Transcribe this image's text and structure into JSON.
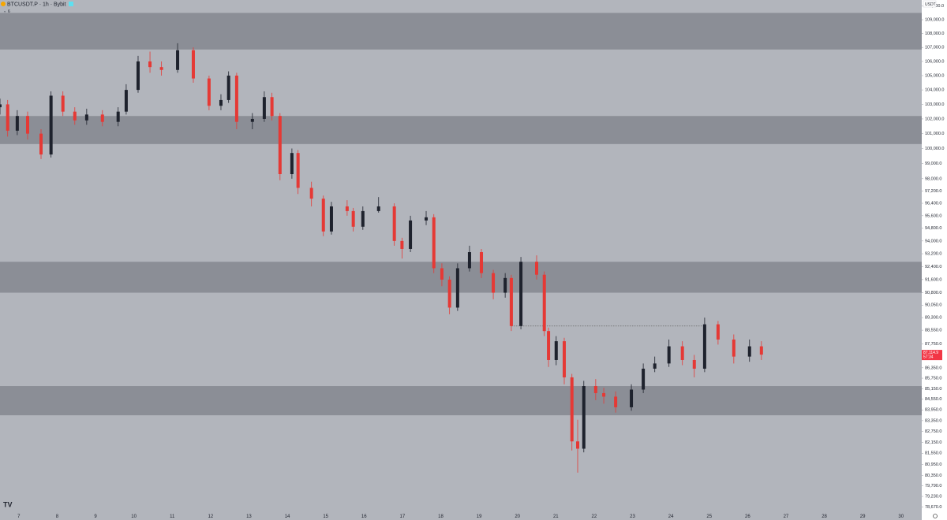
{
  "chart_data": {
    "type": "candlestick",
    "title": "BTCUSDT.P · 1h · Bybit",
    "indicator_count": "6",
    "currency": "USDT",
    "log_scale": true,
    "up_color": "#1e222d",
    "down_color": "#e53935",
    "zone_color": "#8b8e96",
    "xlim": [
      6.51,
      30.54
    ],
    "xticks": [
      7,
      8,
      9,
      10,
      11,
      12,
      13,
      14,
      15,
      16,
      17,
      18,
      19,
      20,
      21,
      22,
      23,
      24,
      25,
      26,
      27,
      28,
      29,
      30
    ],
    "ylim": [
      78400,
      110450
    ],
    "yticks": [
      {
        "value": 110000,
        "label": "110,000.0"
      },
      {
        "value": 109000,
        "label": "109,000.0"
      },
      {
        "value": 108000,
        "label": "108,000.0"
      },
      {
        "value": 107000,
        "label": "107,000.0"
      },
      {
        "value": 106000,
        "label": "106,000.0"
      },
      {
        "value": 105000,
        "label": "105,000.0"
      },
      {
        "value": 104000,
        "label": "104,000.0"
      },
      {
        "value": 103000,
        "label": "103,000.0"
      },
      {
        "value": 102000,
        "label": "102,000.0"
      },
      {
        "value": 101000,
        "label": "101,000.0"
      },
      {
        "value": 100000,
        "label": "100,000.0"
      },
      {
        "value": 99000,
        "label": "99,000.0"
      },
      {
        "value": 98000,
        "label": "98,000.0"
      },
      {
        "value": 97200,
        "label": "97,200.0"
      },
      {
        "value": 96400,
        "label": "96,400.0"
      },
      {
        "value": 95600,
        "label": "95,600.0"
      },
      {
        "value": 94800,
        "label": "94,800.0"
      },
      {
        "value": 94000,
        "label": "94,000.0"
      },
      {
        "value": 93200,
        "label": "93,200.0"
      },
      {
        "value": 92400,
        "label": "92,400.0"
      },
      {
        "value": 91600,
        "label": "91,600.0"
      },
      {
        "value": 90800,
        "label": "90,800.0"
      },
      {
        "value": 90050,
        "label": "90,050.0"
      },
      {
        "value": 89300,
        "label": "89,300.0"
      },
      {
        "value": 88550,
        "label": "88,550.0"
      },
      {
        "value": 87750,
        "label": "87,750.0"
      },
      {
        "value": 86950,
        "label": "86,950.0"
      },
      {
        "value": 86350,
        "label": "86,350.0"
      },
      {
        "value": 85750,
        "label": "85,750.0"
      },
      {
        "value": 85150,
        "label": "85,150.0"
      },
      {
        "value": 84550,
        "label": "84,550.0"
      },
      {
        "value": 83950,
        "label": "83,950.0"
      },
      {
        "value": 83350,
        "label": "83,350.0"
      },
      {
        "value": 82750,
        "label": "82,750.0"
      },
      {
        "value": 82150,
        "label": "82,150.0"
      },
      {
        "value": 81550,
        "label": "81,550.0"
      },
      {
        "value": 80950,
        "label": "80,950.0"
      },
      {
        "value": 80350,
        "label": "80,350.0"
      },
      {
        "value": 79790,
        "label": "79,790.0"
      },
      {
        "value": 79230,
        "label": "79,230.0"
      },
      {
        "value": 78670,
        "label": "78,670.0"
      }
    ],
    "zones": [
      {
        "from": 106850,
        "to": 109500
      },
      {
        "from": 100300,
        "to": 102200
      },
      {
        "from": 90800,
        "to": 92700
      },
      {
        "from": 83650,
        "to": 85300
      }
    ],
    "dotted_line": {
      "from_x": 19.84,
      "to_x": 24.88,
      "price": 88800
    },
    "last_price": {
      "value": 87114.9,
      "label": "87,114.9"
    },
    "countdown": "57:34",
    "x": [
      6.51,
      6.71,
      6.96,
      7.23,
      7.58,
      7.84,
      8.15,
      8.46,
      8.77,
      9.18,
      9.59,
      9.8,
      10.11,
      10.42,
      10.72,
      11.14,
      11.55,
      11.96,
      12.27,
      12.47,
      12.68,
      13.09,
      13.4,
      13.6,
      13.81,
      14.12,
      14.28,
      14.63,
      14.94,
      15.15,
      15.56,
      15.72,
      15.97,
      16.38,
      16.79,
      16.99,
      17.21,
      17.62,
      17.82,
      18.03,
      18.23,
      18.44,
      18.75,
      19.06,
      19.37,
      19.68,
      19.84,
      20.09,
      20.5,
      20.7,
      20.81,
      21.01,
      21.22,
      21.42,
      21.57,
      21.73,
      22.04,
      22.25,
      22.56,
      22.97,
      23.28,
      23.58,
      23.95,
      24.3,
      24.61,
      24.88,
      25.23,
      25.64,
      26.05,
      26.36
    ],
    "open": [
      102800,
      103000,
      101200,
      102200,
      101000,
      99600,
      103600,
      102500,
      101900,
      102300,
      101800,
      102500,
      104000,
      106000,
      105600,
      105400,
      106800,
      104800,
      102900,
      103300,
      105000,
      101800,
      102000,
      103500,
      102200,
      98300,
      99700,
      97400,
      96700,
      94600,
      96200,
      95900,
      94900,
      95900,
      96200,
      94000,
      93500,
      95300,
      95500,
      92300,
      91600,
      89900,
      92300,
      93300,
      92000,
      90800,
      91700,
      88800,
      92700,
      91900,
      88500,
      86800,
      87900,
      85800,
      82200,
      81800,
      85300,
      84900,
      84700,
      84100,
      85100,
      86300,
      86600,
      87600,
      86800,
      86300,
      88900,
      88000,
      87000,
      87600
    ],
    "high": [
      103400,
      103300,
      102600,
      102500,
      101300,
      103900,
      103900,
      102800,
      102700,
      102600,
      102800,
      104400,
      106400,
      106700,
      106000,
      107300,
      107000,
      105000,
      103700,
      105300,
      105200,
      102400,
      103900,
      103800,
      102400,
      100000,
      99900,
      97800,
      96900,
      96500,
      96600,
      96100,
      96200,
      96800,
      96400,
      94200,
      95600,
      95900,
      95700,
      92600,
      91800,
      92600,
      93700,
      93500,
      92200,
      92000,
      91900,
      93000,
      93100,
      92100,
      88700,
      88200,
      88100,
      86000,
      83400,
      85600,
      85700,
      85200,
      85000,
      85400,
      86600,
      87000,
      88000,
      87900,
      87100,
      89300,
      89100,
      88300,
      88000,
      87900
    ],
    "low": [
      102300,
      100800,
      100900,
      100600,
      99300,
      99400,
      102200,
      101600,
      101600,
      101500,
      101500,
      102300,
      103800,
      105200,
      105000,
      105200,
      104500,
      102600,
      102600,
      103100,
      101300,
      101300,
      101800,
      101900,
      97900,
      98000,
      97000,
      96200,
      94300,
      94400,
      95600,
      94600,
      94700,
      95800,
      93700,
      92900,
      93300,
      95000,
      92000,
      91200,
      89500,
      89700,
      92100,
      91700,
      90400,
      90500,
      88500,
      88600,
      91600,
      88200,
      86400,
      86500,
      85400,
      81700,
      80500,
      81600,
      84500,
      84300,
      83800,
      83900,
      84900,
      86100,
      86400,
      86500,
      85800,
      86100,
      87700,
      86600,
      86700,
      86800
    ],
    "close": [
      103000,
      101200,
      102200,
      101000,
      99600,
      103600,
      102500,
      101900,
      102300,
      101800,
      102500,
      104000,
      106000,
      105600,
      105400,
      106800,
      104800,
      102900,
      103300,
      105000,
      101800,
      102000,
      103500,
      102200,
      98300,
      99700,
      97400,
      96700,
      94600,
      96200,
      95900,
      94900,
      95900,
      96200,
      94000,
      93500,
      95300,
      95500,
      92300,
      91600,
      89900,
      92300,
      93300,
      92000,
      90800,
      91700,
      88800,
      92700,
      91900,
      88500,
      86800,
      87900,
      85800,
      82200,
      81800,
      85300,
      84900,
      84700,
      84100,
      85100,
      86300,
      86600,
      87600,
      86800,
      86300,
      88900,
      88000,
      87000,
      87600,
      87115
    ]
  }
}
